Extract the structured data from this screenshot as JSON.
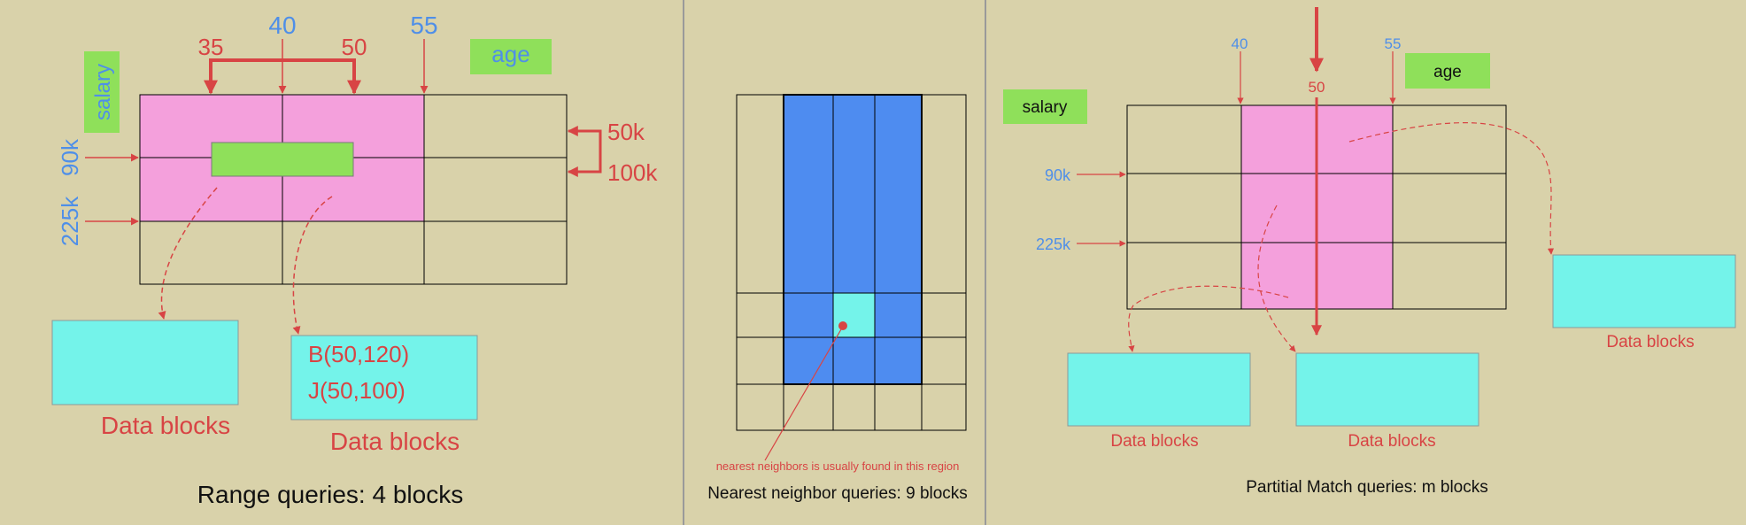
{
  "colors": {
    "background": "#d9d2aa",
    "pink": "#f4a0dc",
    "green": "#8fe05a",
    "cyan": "#74f3ea",
    "blue": "#4e8cf0",
    "red": "#d84444",
    "label_blue": "#4f8fe8",
    "divider": "#9a9a9a"
  },
  "panel_range": {
    "tick_labels": [
      "35",
      "40",
      "50",
      "55"
    ],
    "attr_age": "age",
    "attr_salary": "salary",
    "salary_ticks": [
      "90k",
      "225k"
    ],
    "right_labels": [
      "50k",
      "100k"
    ],
    "records": [
      "B(50,120)",
      "J(50,100)"
    ],
    "data_blocks_label": "Data blocks",
    "caption": "Range queries: 4 blocks"
  },
  "panel_nn": {
    "note": "nearest neighbors is usually found in this region",
    "caption": "Nearest neighbor queries: 9 blocks"
  },
  "panel_pm": {
    "tick_labels": [
      "40",
      "50",
      "55"
    ],
    "attr_age": "age",
    "attr_salary": "salary",
    "salary_ticks": [
      "90k",
      "225k"
    ],
    "data_blocks_label": "Data blocks",
    "caption": "Partitial Match queries: m blocks"
  }
}
